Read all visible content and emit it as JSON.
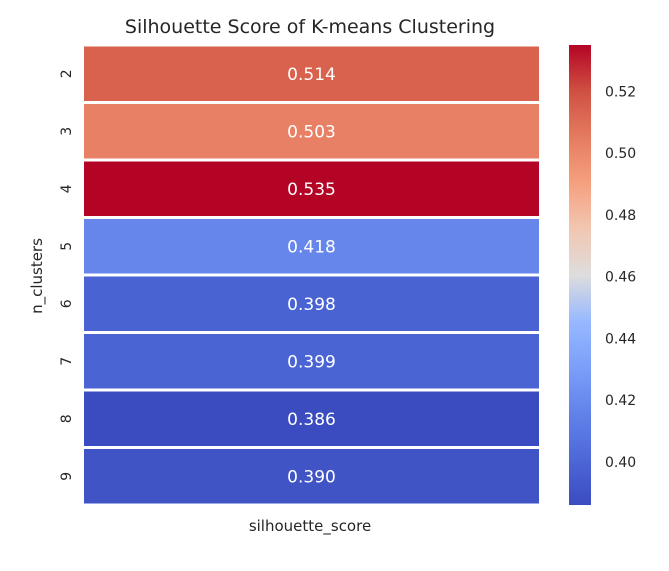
{
  "chart_data": {
    "type": "heatmap",
    "title": "Silhouette Score of K-means Clustering",
    "xlabel": "silhouette_score",
    "ylabel": "n_clusters",
    "columns": [
      "silhouette_score"
    ],
    "rows": [
      "2",
      "3",
      "4",
      "5",
      "6",
      "7",
      "8",
      "9"
    ],
    "values": [
      0.514,
      0.503,
      0.535,
      0.418,
      0.398,
      0.399,
      0.386,
      0.39
    ],
    "value_labels": [
      "0.514",
      "0.503",
      "0.535",
      "0.418",
      "0.398",
      "0.399",
      "0.386",
      "0.390"
    ],
    "colorbar": {
      "colormap": "coolwarm",
      "range": [
        0.386,
        0.535
      ],
      "ticks": [
        0.4,
        0.42,
        0.44,
        0.46,
        0.48,
        0.5,
        0.52
      ],
      "tick_labels": [
        "0.40",
        "0.42",
        "0.44",
        "0.46",
        "0.48",
        "0.50",
        "0.52"
      ]
    },
    "cell_label_color": "#ffffff",
    "gap_color": "#ffffff"
  }
}
